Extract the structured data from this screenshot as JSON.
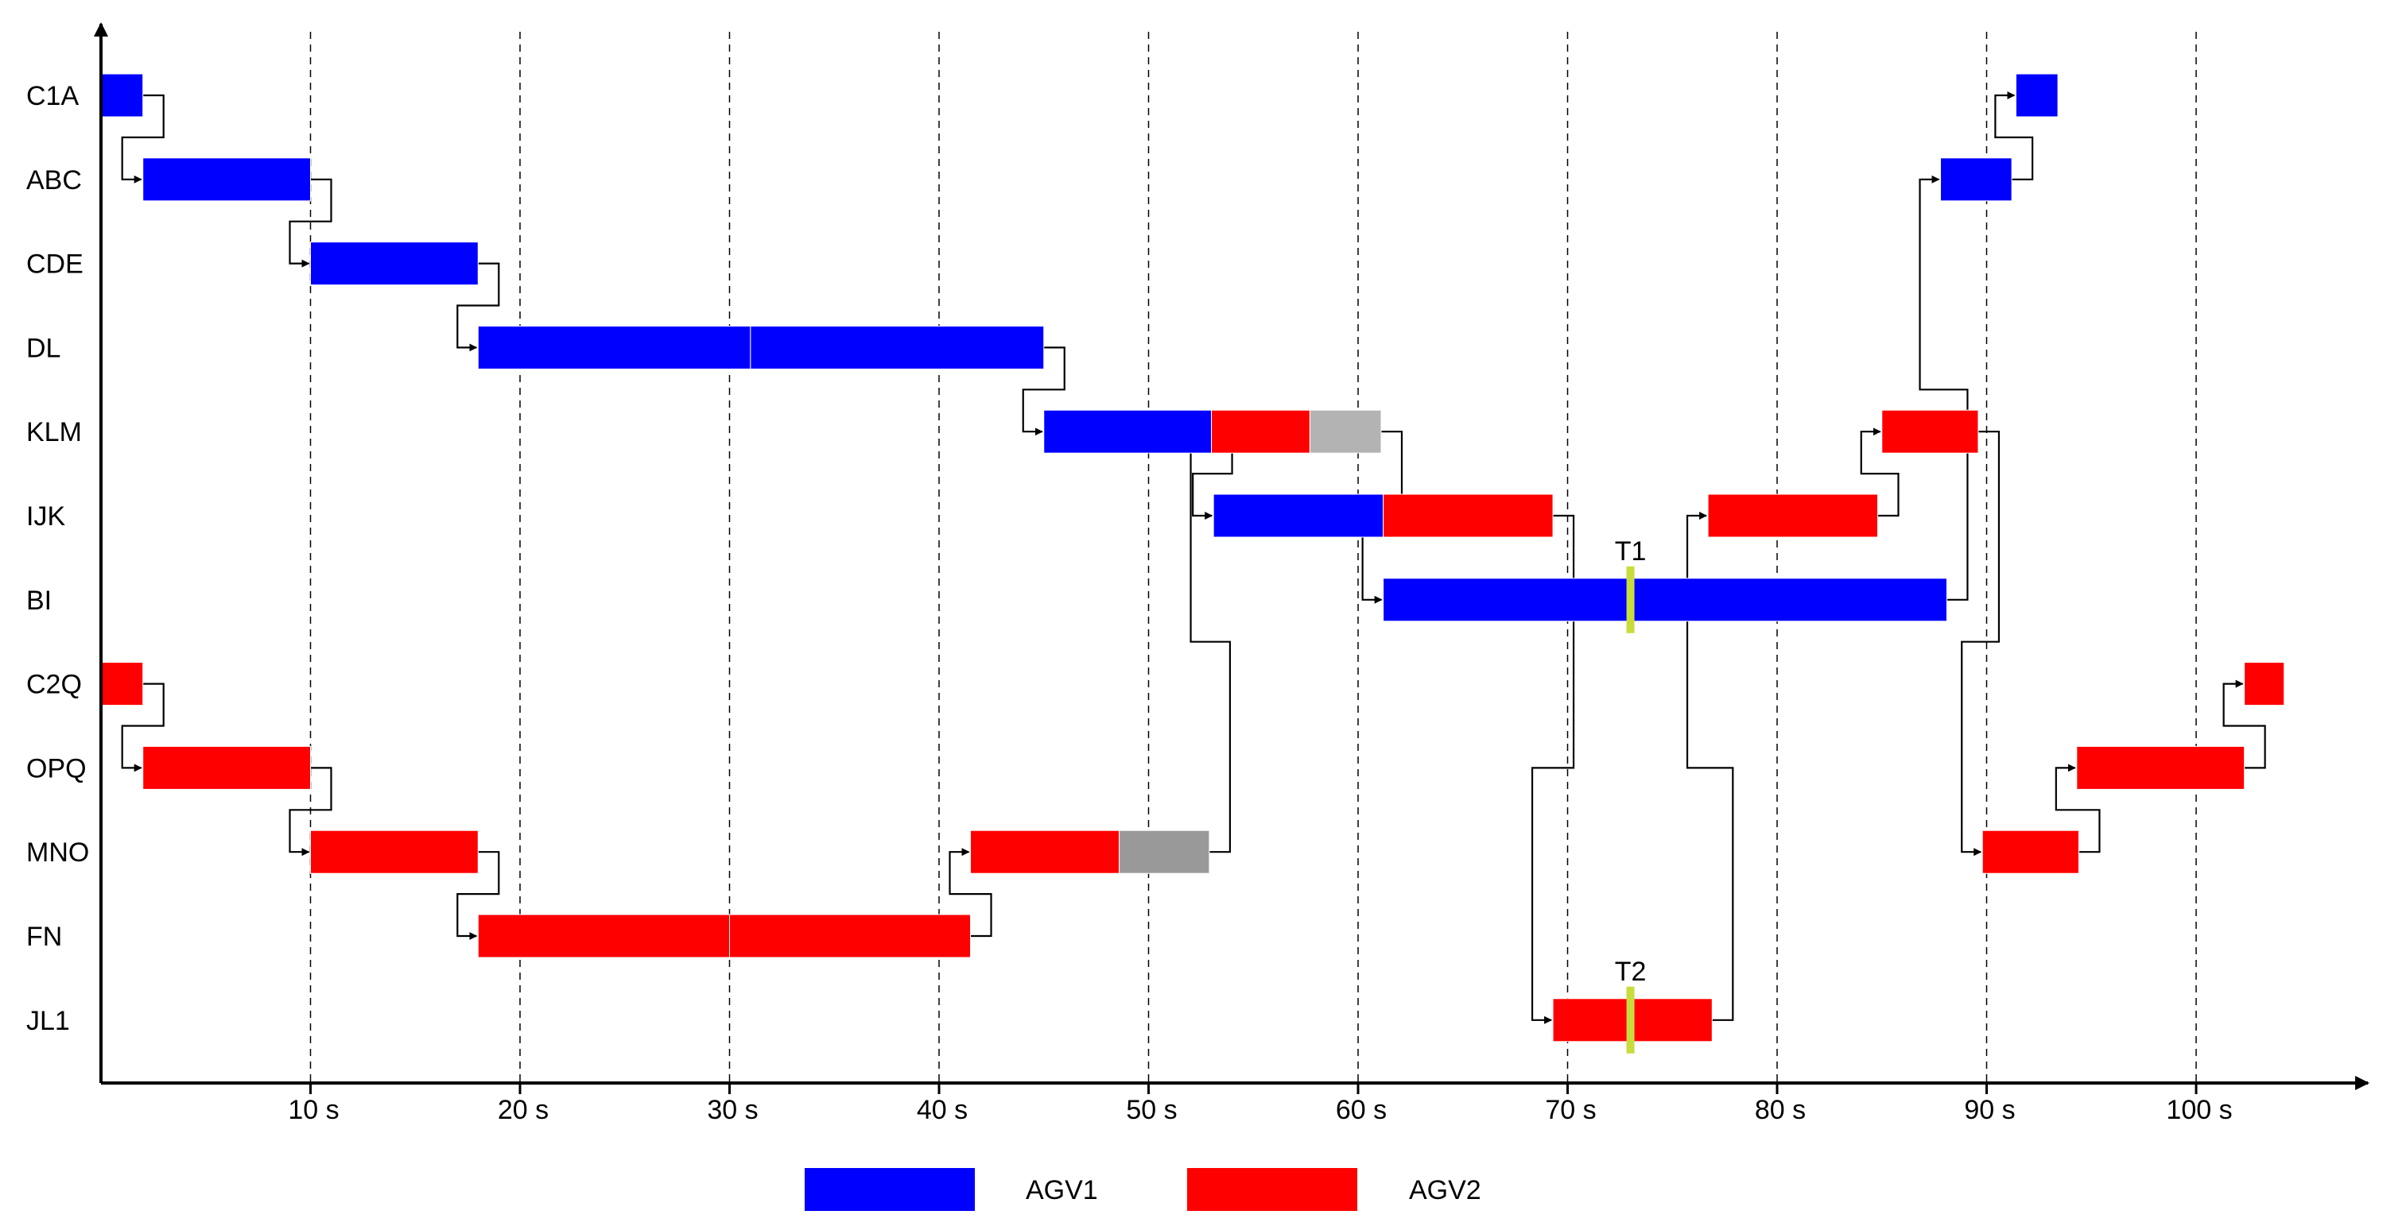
{
  "chart_data": {
    "type": "gantt",
    "title": "",
    "xlabel": "",
    "ylabel": "",
    "xlim": [
      0,
      107
    ],
    "x_unit_suffix": " s",
    "x_ticks": [
      10,
      20,
      30,
      40,
      50,
      60,
      70,
      80,
      90,
      100
    ],
    "x_tick_labels": [
      "10 s",
      "20 s",
      "30 s",
      "40 s",
      "50 s",
      "60 s",
      "70 s",
      "80 s",
      "90 s",
      "100 s"
    ],
    "gridlines": "dashed-vertical",
    "rows": [
      "C1A",
      "ABC",
      "CDE",
      "DL",
      "KLM",
      "IJK",
      "BI",
      "C2Q",
      "OPQ",
      "MNO",
      "FN",
      "JL1"
    ],
    "colors": {
      "AGV1": "#0000ff",
      "AGV2": "#ff0000",
      "wait_light": "#b3b3b3",
      "wait_dark": "#999999",
      "marker": "#c8dc3c"
    },
    "tasks": [
      {
        "row": "C1A",
        "agv": "AGV1",
        "start": 0,
        "end": 2
      },
      {
        "row": "ABC",
        "agv": "AGV1",
        "start": 2,
        "end": 10
      },
      {
        "row": "CDE",
        "agv": "AGV1",
        "start": 10,
        "end": 18
      },
      {
        "row": "DL",
        "agv": "AGV1",
        "start": 18,
        "end": 31
      },
      {
        "row": "DL",
        "agv": "AGV1",
        "start": 31,
        "end": 45
      },
      {
        "row": "KLM",
        "agv": "AGV1",
        "start": 45,
        "end": 53
      },
      {
        "row": "KLM",
        "agv": "AGV2",
        "start": 53,
        "end": 57.7
      },
      {
        "row": "KLM",
        "agv": "wait_light",
        "start": 57.7,
        "end": 61.1
      },
      {
        "row": "IJK",
        "agv": "AGV1",
        "start": 53.1,
        "end": 61.2
      },
      {
        "row": "IJK",
        "agv": "AGV2",
        "start": 61.2,
        "end": 69.3
      },
      {
        "row": "IJK",
        "agv": "AGV2",
        "start": 76.7,
        "end": 84.8
      },
      {
        "row": "BI",
        "agv": "AGV1",
        "start": 61.2,
        "end": 88.1
      },
      {
        "row": "KLM",
        "agv": "AGV2",
        "start": 85,
        "end": 89.6
      },
      {
        "row": "ABC",
        "agv": "AGV1",
        "start": 87.8,
        "end": 91.2
      },
      {
        "row": "C1A",
        "agv": "AGV1",
        "start": 91.4,
        "end": 93.4
      },
      {
        "row": "C2Q",
        "agv": "AGV2",
        "start": 0,
        "end": 2
      },
      {
        "row": "OPQ",
        "agv": "AGV2",
        "start": 2,
        "end": 10
      },
      {
        "row": "MNO",
        "agv": "AGV2",
        "start": 10,
        "end": 18
      },
      {
        "row": "FN",
        "agv": "AGV2",
        "start": 18,
        "end": 30
      },
      {
        "row": "FN",
        "agv": "AGV2",
        "start": 30,
        "end": 41.5
      },
      {
        "row": "MNO",
        "agv": "AGV2",
        "start": 41.5,
        "end": 48.6
      },
      {
        "row": "MNO",
        "agv": "wait_dark",
        "start": 48.6,
        "end": 52.9
      },
      {
        "row": "JL1",
        "agv": "AGV2",
        "start": 69.3,
        "end": 76.9
      },
      {
        "row": "MNO",
        "agv": "AGV2",
        "start": 89.8,
        "end": 94.4
      },
      {
        "row": "OPQ",
        "agv": "AGV2",
        "start": 94.3,
        "end": 102.3
      },
      {
        "row": "C2Q",
        "agv": "AGV2",
        "start": 102.3,
        "end": 104.2
      }
    ],
    "markers": [
      {
        "label": "T1",
        "row": "BI",
        "x": 73
      },
      {
        "label": "T2",
        "row": "JL1",
        "x": 73
      }
    ],
    "links": [
      {
        "from_row": "C1A",
        "from_x": 2,
        "to_row": "ABC",
        "to_x": 2
      },
      {
        "from_row": "ABC",
        "from_x": 10,
        "to_row": "CDE",
        "to_x": 10
      },
      {
        "from_row": "CDE",
        "from_x": 18,
        "to_row": "DL",
        "to_x": 18
      },
      {
        "from_row": "DL",
        "from_x": 45,
        "to_row": "KLM",
        "to_x": 45
      },
      {
        "from_row": "KLM",
        "from_x": 53,
        "to_row": "IJK",
        "to_x": 53.1
      },
      {
        "from_row": "KLM",
        "from_x": 61.1,
        "to_row": "BI",
        "to_x": 61.2
      },
      {
        "from_row": "IJK",
        "from_x": 61.2,
        "to_row": "IJK",
        "to_x": 61.2
      },
      {
        "from_row": "MNO",
        "from_x": 52.9,
        "to_row": "KLM",
        "to_x": 53
      },
      {
        "from_row": "IJK",
        "from_x": 69.3,
        "to_row": "JL1",
        "to_x": 69.3
      },
      {
        "from_row": "JL1",
        "from_x": 76.9,
        "to_row": "IJK",
        "to_x": 76.7
      },
      {
        "from_row": "IJK",
        "from_x": 84.8,
        "to_row": "KLM",
        "to_x": 85
      },
      {
        "from_row": "BI",
        "from_x": 88.1,
        "to_row": "ABC",
        "to_x": 87.8
      },
      {
        "from_row": "ABC",
        "from_x": 91.2,
        "to_row": "C1A",
        "to_x": 91.4
      },
      {
        "from_row": "KLM",
        "from_x": 89.6,
        "to_row": "MNO",
        "to_x": 89.8
      },
      {
        "from_row": "MNO",
        "from_x": 94.4,
        "to_row": "OPQ",
        "to_x": 94.3
      },
      {
        "from_row": "OPQ",
        "from_x": 102.3,
        "to_row": "C2Q",
        "to_x": 102.3
      },
      {
        "from_row": "C2Q",
        "from_x": 2,
        "to_row": "OPQ",
        "to_x": 2
      },
      {
        "from_row": "OPQ",
        "from_x": 10,
        "to_row": "MNO",
        "to_x": 10
      },
      {
        "from_row": "MNO",
        "from_x": 18,
        "to_row": "FN",
        "to_x": 18
      },
      {
        "from_row": "FN",
        "from_x": 41.5,
        "to_row": "MNO",
        "to_x": 41.5
      }
    ],
    "legend": {
      "position": "bottom-center",
      "entries": [
        {
          "label": "AGV1",
          "color": "#0000ff"
        },
        {
          "label": "AGV2",
          "color": "#ff0000"
        }
      ]
    }
  }
}
